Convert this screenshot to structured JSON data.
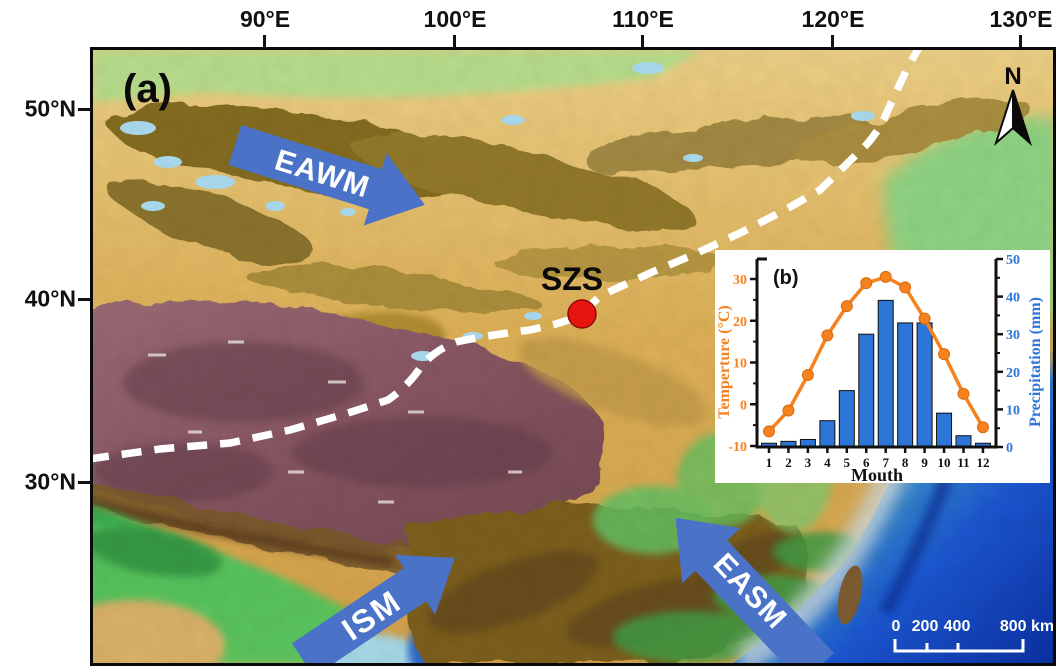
{
  "figure": {
    "panel_a_label": "(a)",
    "site_label": "SZS",
    "north_label": "N",
    "arrows": {
      "eawm": "EAWM",
      "ism": "ISM",
      "easm": "EASM"
    },
    "axes": {
      "top_ticks": [
        "90°E",
        "100°E",
        "110°E",
        "120°E",
        "130°E"
      ],
      "left_ticks": [
        "50°N",
        "40°N",
        "30°N"
      ]
    },
    "scalebar": {
      "labels": [
        "0",
        "200",
        "400",
        "800 km"
      ]
    },
    "colors": {
      "arrow_blue": "#4a73c8",
      "site_red": "#e81410",
      "temp_orange": "#f5821f",
      "precip_blue": "#2e75d8",
      "dashed_line": "#ffffff"
    }
  },
  "chart_data": {
    "type": "bar",
    "panel_label": "(b)",
    "title": "",
    "xlabel": "Mouth",
    "x": [
      1,
      2,
      3,
      4,
      5,
      6,
      7,
      8,
      9,
      10,
      11,
      12
    ],
    "series": [
      {
        "name": "Temperture (°C)",
        "type": "line",
        "axis": "left",
        "color": "#f5821f",
        "values": [
          -6.5,
          -1.5,
          7,
          16.5,
          23.5,
          29,
          30.5,
          28,
          20.5,
          12,
          2.5,
          -5.5
        ]
      },
      {
        "name": "Precipitation (mm)",
        "type": "bar",
        "axis": "right",
        "color": "#2e75d8",
        "values": [
          1,
          1.5,
          2,
          7,
          15,
          30,
          39,
          33,
          33,
          9,
          3,
          1
        ]
      }
    ],
    "left_axis": {
      "label": "Temperture (°C)",
      "ticks": [
        -10,
        0,
        10,
        20,
        30
      ],
      "range": [
        -10,
        30
      ],
      "color": "#f5821f"
    },
    "right_axis": {
      "label": "Precipitation (mm)",
      "ticks": [
        0,
        10,
        20,
        30,
        40,
        50
      ],
      "range": [
        0,
        50
      ],
      "color": "#2e75d8"
    },
    "legend": "none",
    "grid": false
  }
}
